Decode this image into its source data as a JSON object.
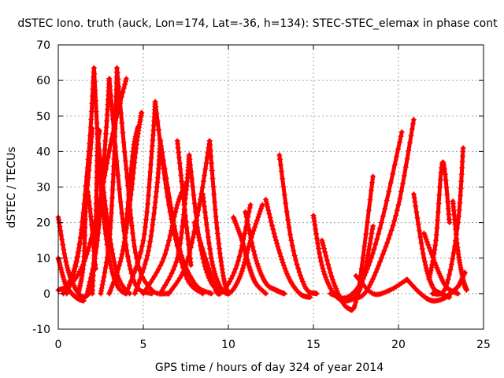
{
  "chart_data": {
    "type": "scatter",
    "title": "dSTEC Iono. truth (auck, Lon=174, Lat=-36, h=134): STEC-STEC_elemax in phase cont",
    "xlabel": "GPS time / hours of day 324 of year 2014",
    "ylabel": "dSTEC  / TECUs",
    "xlim": [
      0,
      25
    ],
    "ylim": [
      -10,
      70
    ],
    "x_ticks": [
      0,
      5,
      10,
      15,
      20,
      25
    ],
    "y_ticks": [
      -10,
      0,
      10,
      20,
      30,
      40,
      50,
      60,
      70
    ],
    "grid": true,
    "marker": "plus",
    "color": "#ff0000",
    "series": [
      {
        "x": [
          0.0,
          0.5,
          1.0,
          1.5,
          2.0
        ],
        "y": [
          21.5,
          8.0,
          1.5,
          -1.0,
          1.0
        ]
      },
      {
        "x": [
          0.0,
          0.4,
          0.8,
          1.2,
          1.5
        ],
        "y": [
          10.0,
          3.0,
          0.0,
          -1.5,
          -2.0
        ]
      },
      {
        "x": [
          0.0,
          0.8,
          1.6,
          2.4,
          3.2,
          4.0
        ],
        "y": [
          1.0,
          3.0,
          10.0,
          25.0,
          45.0,
          60.5
        ]
      },
      {
        "x": [
          0.3,
          1.0,
          1.6,
          2.0
        ],
        "y": [
          0.0,
          8.0,
          25.0,
          46.5
        ]
      },
      {
        "x": [
          0.5,
          1.2,
          1.8,
          2.1
        ],
        "y": [
          0.0,
          12.0,
          40.0,
          63.5
        ]
      },
      {
        "x": [
          1.2,
          1.5,
          1.7,
          2.2
        ],
        "y": [
          0.5,
          9.0,
          29.0,
          7.0
        ]
      },
      {
        "x": [
          2.1,
          2.5,
          3.0,
          3.5,
          4.0
        ],
        "y": [
          63.5,
          30.0,
          10.0,
          2.0,
          0.0
        ]
      },
      {
        "x": [
          2.0,
          2.2,
          2.3,
          2.4
        ],
        "y": [
          0.0,
          20.0,
          40.0,
          46.0
        ]
      },
      {
        "x": [
          2.3,
          2.9,
          3.5,
          4.2
        ],
        "y": [
          45.0,
          20.0,
          5.0,
          0.0
        ]
      },
      {
        "x": [
          1.7,
          2.3,
          2.8,
          3.0
        ],
        "y": [
          0.0,
          15.0,
          45.0,
          60.5
        ]
      },
      {
        "x": [
          3.0,
          3.8,
          4.5,
          5.5
        ],
        "y": [
          60.5,
          20.0,
          3.0,
          0.0
        ]
      },
      {
        "x": [
          2.5,
          3.0,
          3.3,
          3.45
        ],
        "y": [
          0.0,
          15.0,
          40.0,
          63.5
        ]
      },
      {
        "x": [
          3.45,
          4.0,
          4.6,
          5.5,
          6.5
        ],
        "y": [
          63.5,
          35.0,
          10.0,
          1.0,
          0.0
        ]
      },
      {
        "x": [
          3.0,
          3.7,
          4.2,
          4.6,
          4.9
        ],
        "y": [
          0.0,
          10.0,
          25.0,
          42.0,
          51.0
        ]
      },
      {
        "x": [
          4.0,
          4.4,
          4.7
        ],
        "y": [
          20.0,
          40.0,
          47.0
        ]
      },
      {
        "x": [
          4.0,
          5.0,
          5.5,
          5.7
        ],
        "y": [
          0.0,
          15.0,
          40.0,
          54.0
        ]
      },
      {
        "x": [
          5.7,
          6.5,
          7.5,
          8.5
        ],
        "y": [
          54.0,
          25.0,
          5.0,
          0.0
        ]
      },
      {
        "x": [
          4.5,
          5.3,
          5.8,
          6.0
        ],
        "y": [
          0.0,
          12.0,
          30.0,
          43.0
        ]
      },
      {
        "x": [
          6.0,
          7.0,
          8.0,
          9.0
        ],
        "y": [
          43.0,
          15.0,
          3.0,
          0.0
        ]
      },
      {
        "x": [
          5.0,
          6.2,
          7.0,
          7.5
        ],
        "y": [
          0.0,
          10.0,
          25.0,
          31.0
        ]
      },
      {
        "x": [
          7.0,
          7.4,
          7.8
        ],
        "y": [
          43.0,
          25.0,
          8.0
        ]
      },
      {
        "x": [
          6.0,
          7.0,
          7.5,
          7.7
        ],
        "y": [
          0.0,
          10.0,
          28.0,
          39.0
        ]
      },
      {
        "x": [
          7.7,
          8.3,
          9.0,
          10.0
        ],
        "y": [
          39.0,
          15.0,
          3.0,
          0.0
        ]
      },
      {
        "x": [
          6.5,
          7.5,
          8.3,
          8.9
        ],
        "y": [
          0.0,
          8.0,
          25.0,
          43.0
        ]
      },
      {
        "x": [
          8.9,
          9.3,
          9.7,
          10.0
        ],
        "y": [
          43.0,
          20.0,
          5.0,
          0.0
        ]
      },
      {
        "x": [
          8.5,
          9.0,
          9.5,
          10.0
        ],
        "y": [
          28.0,
          10.0,
          2.0,
          0.0
        ]
      },
      {
        "x": [
          8.0,
          9.0,
          9.5,
          10.5,
          11.3
        ],
        "y": [
          20.0,
          5.0,
          0.0,
          8.0,
          25.0
        ]
      },
      {
        "x": [
          9.3,
          10.0,
          10.7,
          11.3,
          12.0
        ],
        "y": [
          3.0,
          0.0,
          5.0,
          15.0,
          25.0
        ]
      },
      {
        "x": [
          10.3,
          10.8,
          11.2,
          11.6,
          12.2
        ],
        "y": [
          21.5,
          15.0,
          8.0,
          3.0,
          0.0
        ]
      },
      {
        "x": [
          11.0,
          11.6,
          12.2,
          12.8,
          13.3
        ],
        "y": [
          23.0,
          10.0,
          3.0,
          1.0,
          0.0
        ]
      },
      {
        "x": [
          12.2,
          12.8,
          13.5,
          14.2,
          14.8
        ],
        "y": [
          26.5,
          15.0,
          5.0,
          0.0,
          -1.0
        ]
      },
      {
        "x": [
          13.0,
          13.7,
          14.5,
          15.2
        ],
        "y": [
          39.0,
          15.0,
          2.0,
          0.0
        ]
      },
      {
        "x": [
          15.0,
          15.5,
          16.2,
          17.0,
          17.8,
          18.5
        ],
        "y": [
          22.0,
          8.0,
          0.0,
          -2.0,
          2.0,
          19.0
        ]
      },
      {
        "x": [
          15.5,
          16.2,
          17.0,
          17.6,
          18.5
        ],
        "y": [
          15.0,
          3.0,
          -4.0,
          0.0,
          33.0
        ]
      },
      {
        "x": [
          16.0,
          17.0,
          18.0,
          19.0,
          20.2
        ],
        "y": [
          0.0,
          -1.0,
          5.0,
          20.0,
          45.5
        ]
      },
      {
        "x": [
          17.0,
          18.0,
          19.0,
          20.0,
          20.9
        ],
        "y": [
          -1.5,
          0.0,
          10.0,
          25.0,
          49.0
        ]
      },
      {
        "x": [
          17.5,
          18.5,
          19.5,
          20.5
        ],
        "y": [
          5.0,
          0.0,
          1.0,
          4.0
        ]
      },
      {
        "x": [
          20.9,
          21.5,
          22.0,
          22.5,
          23.0
        ],
        "y": [
          28.0,
          10.0,
          2.0,
          0.0,
          -1.0
        ]
      },
      {
        "x": [
          20.5,
          21.3,
          22.0,
          22.8,
          23.5
        ],
        "y": [
          4.0,
          0.0,
          -2.0,
          -1.0,
          2.0
        ]
      },
      {
        "x": [
          21.5,
          22.2,
          22.8,
          23.5
        ],
        "y": [
          17.0,
          8.0,
          2.0,
          0.0
        ]
      },
      {
        "x": [
          21.8,
          22.2,
          22.6,
          23.0
        ],
        "y": [
          4.0,
          15.0,
          37.0,
          20.0
        ]
      },
      {
        "x": [
          22.0,
          22.8,
          23.5,
          23.8
        ],
        "y": [
          0.0,
          2.0,
          20.0,
          41.0
        ]
      },
      {
        "x": [
          23.2,
          23.5,
          23.8,
          24.0
        ],
        "y": [
          26.0,
          12.0,
          4.0,
          1.0
        ]
      },
      {
        "x": [
          23.0,
          23.5,
          23.9
        ],
        "y": [
          0.0,
          2.0,
          6.0
        ]
      }
    ]
  }
}
